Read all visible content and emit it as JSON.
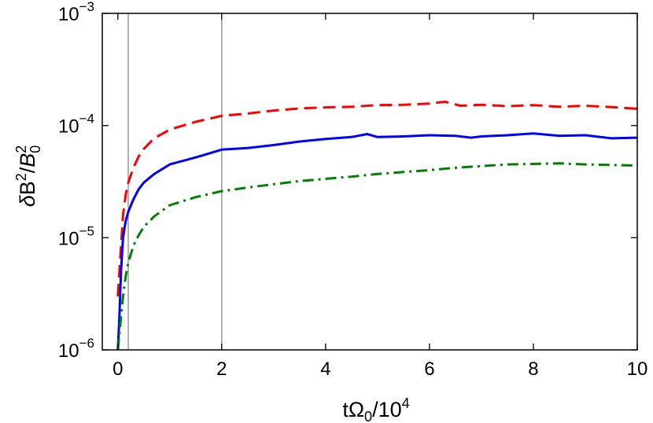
{
  "chart_data": {
    "type": "line",
    "scale": {
      "y": "log"
    },
    "xlabel": {
      "base": "tΩ",
      "sub": "0",
      "rest": "/10",
      "sup": "4"
    },
    "ylabel": {
      "delta": "δ",
      "B": "B",
      "sup": "2",
      "slash": "/",
      "B0": "B",
      "sub0": "0",
      "sup0": "2"
    },
    "xlim": [
      -0.3,
      10
    ],
    "ylim": [
      1e-06,
      0.001
    ],
    "x_ticks": [
      {
        "value": 0,
        "label": "0"
      },
      {
        "value": 2,
        "label": "2"
      },
      {
        "value": 4,
        "label": "4"
      },
      {
        "value": 6,
        "label": "6"
      },
      {
        "value": 8,
        "label": "8"
      },
      {
        "value": 10,
        "label": "10"
      }
    ],
    "y_ticks": [
      {
        "value": 1e-06,
        "base": "10",
        "exp": "−6"
      },
      {
        "value": 1e-05,
        "base": "10",
        "exp": "−5"
      },
      {
        "value": 0.0001,
        "base": "10",
        "exp": "−4"
      },
      {
        "value": 0.001,
        "base": "10",
        "exp": "−3"
      }
    ],
    "vertical_lines": [
      0.2,
      2
    ],
    "series": [
      {
        "style": "dashed",
        "color": "#ff0000",
        "x": [
          0,
          0.05,
          0.1,
          0.15,
          0.2,
          0.3,
          0.4,
          0.5,
          0.7,
          1.0,
          1.5,
          2.0,
          2.5,
          3.0,
          3.5,
          4.0,
          4.5,
          5.0,
          5.5,
          6.0,
          6.3,
          6.6,
          7.0,
          7.5,
          8.0,
          8.5,
          9.0,
          9.5,
          10.0
        ],
        "y": [
          3e-06,
          7e-06,
          1.6e-05,
          2.4e-05,
          3.1e-05,
          4.2e-05,
          5.3e-05,
          6.2e-05,
          7.7e-05,
          9.2e-05,
          0.000108,
          0.000122,
          0.000128,
          0.000136,
          0.000142,
          0.000145,
          0.000147,
          0.000152,
          0.000153,
          0.000157,
          0.000163,
          0.00015,
          0.000153,
          0.000149,
          0.000152,
          0.000147,
          0.00015,
          0.000146,
          0.000141
        ]
      },
      {
        "style": "solid",
        "color": "#0000ff",
        "x": [
          0,
          0.03,
          0.06,
          0.1,
          0.15,
          0.2,
          0.3,
          0.4,
          0.5,
          0.7,
          1.0,
          1.5,
          2.0,
          2.5,
          3.0,
          3.5,
          4.0,
          4.5,
          4.8,
          5.0,
          5.5,
          6.0,
          6.5,
          6.8,
          7.0,
          7.5,
          8.0,
          8.5,
          9.0,
          9.5,
          10.0
        ],
        "y": [
          1e-06,
          2e-06,
          5e-06,
          1e-05,
          1.4e-05,
          1.7e-05,
          2.2e-05,
          2.7e-05,
          3.1e-05,
          3.7e-05,
          4.5e-05,
          5.2e-05,
          6.1e-05,
          6.3e-05,
          6.7e-05,
          7.2e-05,
          7.6e-05,
          7.9e-05,
          8.4e-05,
          7.9e-05,
          8e-05,
          8.2e-05,
          8.1e-05,
          7.8e-05,
          8e-05,
          8.2e-05,
          8.5e-05,
          8.1e-05,
          8.2e-05,
          7.7e-05,
          7.8e-05
        ]
      },
      {
        "style": "dashdot",
        "color": "#007f00",
        "x": [
          0,
          0.1,
          0.15,
          0.2,
          0.3,
          0.4,
          0.5,
          0.7,
          1.0,
          1.5,
          2.0,
          2.5,
          3.0,
          3.5,
          4.0,
          4.5,
          5.0,
          5.5,
          6.0,
          6.5,
          7.0,
          7.5,
          8.0,
          8.5,
          9.0,
          9.5,
          10.0
        ],
        "y": [
          1e-06,
          3e-06,
          4.5e-06,
          6e-06,
          8.5e-06,
          1.05e-05,
          1.25e-05,
          1.55e-05,
          1.95e-05,
          2.3e-05,
          2.6e-05,
          2.8e-05,
          3e-05,
          3.2e-05,
          3.35e-05,
          3.5e-05,
          3.7e-05,
          3.85e-05,
          4e-05,
          4.2e-05,
          4.35e-05,
          4.5e-05,
          4.55e-05,
          4.6e-05,
          4.5e-05,
          4.45e-05,
          4.4e-05
        ]
      }
    ]
  }
}
